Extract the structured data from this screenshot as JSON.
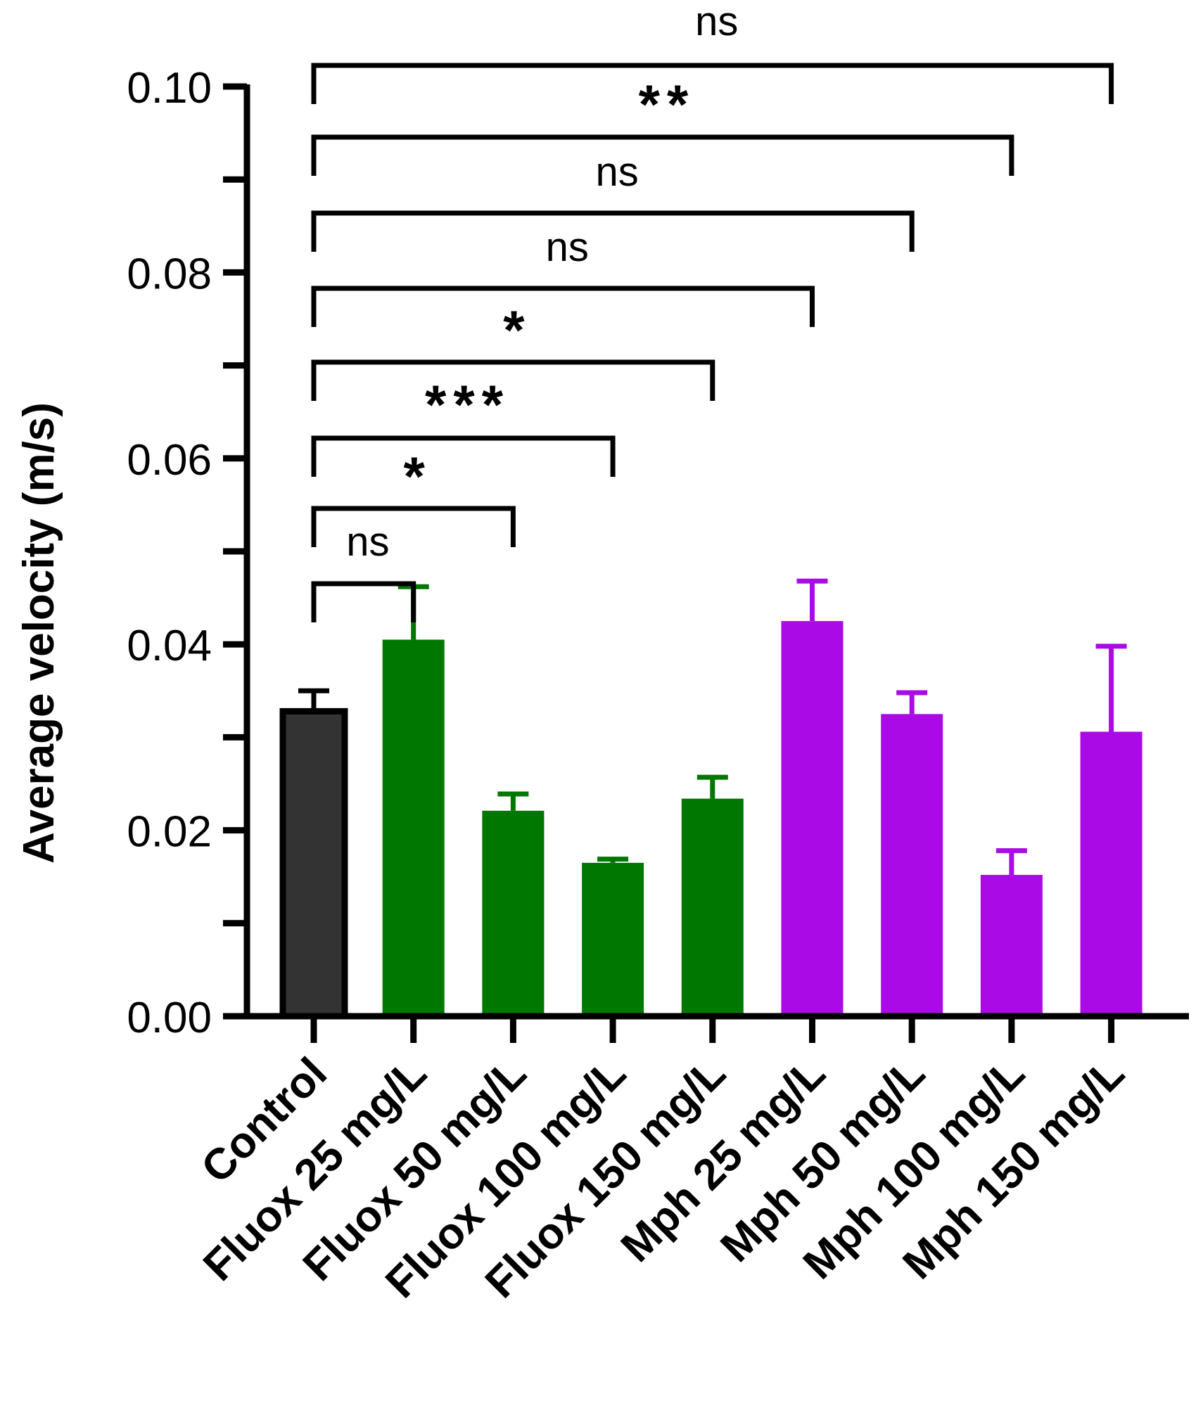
{
  "chart_data": {
    "type": "bar",
    "title": "",
    "xlabel": "",
    "ylabel": "Average velocity (m/s)",
    "ylim": [
      0,
      0.1
    ],
    "yticks": [
      "0.00",
      "0.02",
      "0.04",
      "0.06",
      "0.08",
      "0.10"
    ],
    "ytick_values": [
      0,
      0.02,
      0.04,
      0.06,
      0.08,
      0.1
    ],
    "minor_ytick_values": [
      0.01,
      0.03,
      0.05,
      0.07,
      0.09
    ],
    "grid": false,
    "legend": "none",
    "categories": [
      "Control",
      "Fluox 25 mg/L",
      "Fluox 50 mg/L",
      "Fluox 100 mg/L",
      "Fluox 150 mg/L",
      "Mph 25 mg/L",
      "Mph 50 mg/L",
      "Mph 100 mg/L",
      "Mph 150 mg/L"
    ],
    "values": [
      0.0328,
      0.0405,
      0.0221,
      0.0165,
      0.0234,
      0.0425,
      0.0325,
      0.0152,
      0.0306
    ],
    "error_upper": [
      0.035,
      0.0462,
      0.0239,
      0.0169,
      0.0257,
      0.0468,
      0.0348,
      0.0178,
      0.0398
    ],
    "bar_colors": [
      "#333333",
      "#007800",
      "#007800",
      "#007800",
      "#007800",
      "#aa0ae6",
      "#aa0ae6",
      "#aa0ae6",
      "#aa0ae6"
    ],
    "bar_outline_color": "#000000",
    "comparisons": [
      {
        "from": 0,
        "to": 1,
        "label": "ns"
      },
      {
        "from": 0,
        "to": 2,
        "label": "*"
      },
      {
        "from": 0,
        "to": 3,
        "label": "***"
      },
      {
        "from": 0,
        "to": 4,
        "label": "*"
      },
      {
        "from": 0,
        "to": 5,
        "label": "ns"
      },
      {
        "from": 0,
        "to": 6,
        "label": "ns"
      },
      {
        "from": 0,
        "to": 7,
        "label": "**"
      },
      {
        "from": 0,
        "to": 8,
        "label": "ns"
      }
    ]
  }
}
